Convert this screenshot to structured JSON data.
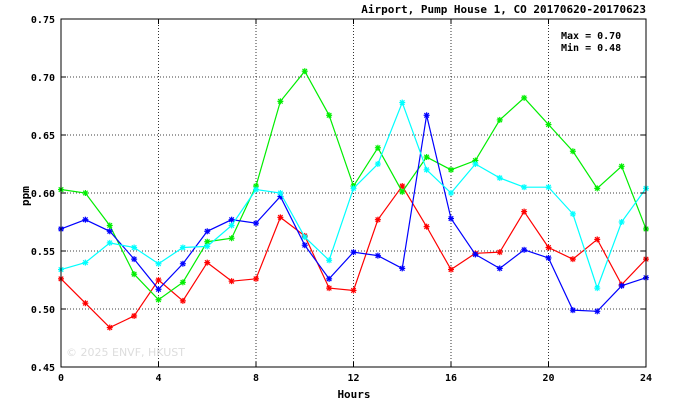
{
  "chart_data": {
    "type": "line",
    "title": "Airport, Pump House 1, CO 20170620-20170623",
    "xlabel": "Hours",
    "ylabel": "ppm",
    "xlim": [
      0,
      24
    ],
    "ylim": [
      0.45,
      0.75
    ],
    "xticks": [
      "0",
      "4",
      "8",
      "12",
      "16",
      "20",
      "24"
    ],
    "yticks": [
      "0.45",
      "0.50",
      "0.55",
      "0.60",
      "0.65",
      "0.70",
      "0.75"
    ],
    "grid": true,
    "annotations": {
      "max": "Max = 0.70",
      "min": "Min = 0.48"
    },
    "watermark": "© 2025  ENVF, HKUST",
    "x": [
      0,
      1,
      2,
      3,
      4,
      5,
      6,
      7,
      8,
      9,
      10,
      11,
      12,
      13,
      14,
      15,
      16,
      17,
      18,
      19,
      20,
      21,
      22,
      23,
      24
    ],
    "series": [
      {
        "color": "#ff0000",
        "values": [
          0.526,
          0.505,
          0.484,
          0.494,
          0.525,
          0.507,
          0.54,
          0.524,
          0.526,
          0.579,
          0.563,
          0.518,
          0.516,
          0.577,
          0.606,
          0.571,
          0.534,
          0.548,
          0.549,
          0.584,
          0.553,
          0.543,
          0.56,
          0.521,
          0.543
        ]
      },
      {
        "color": "#00ee00",
        "values": [
          0.603,
          0.6,
          0.572,
          0.53,
          0.508,
          0.523,
          0.558,
          0.561,
          0.606,
          0.679,
          0.705,
          0.667,
          0.606,
          0.639,
          0.601,
          0.631,
          0.62,
          0.628,
          0.663,
          0.682,
          0.659,
          0.636,
          0.604,
          0.623,
          0.569
        ]
      },
      {
        "color": "#0000ff",
        "values": [
          0.569,
          0.577,
          0.567,
          0.543,
          0.517,
          0.539,
          0.567,
          0.577,
          0.574,
          0.597,
          0.555,
          0.526,
          0.549,
          0.546,
          0.535,
          0.667,
          0.578,
          0.547,
          0.535,
          0.551,
          0.544,
          0.499,
          0.498,
          0.52,
          0.527
        ]
      },
      {
        "color": "#00ffff",
        "values": [
          0.534,
          0.54,
          0.557,
          0.553,
          0.539,
          0.553,
          0.554,
          0.572,
          0.603,
          0.6,
          0.562,
          0.542,
          0.604,
          0.625,
          0.678,
          0.62,
          0.6,
          0.625,
          0.613,
          0.605,
          0.605,
          0.582,
          0.518,
          0.575,
          0.604
        ]
      }
    ]
  }
}
